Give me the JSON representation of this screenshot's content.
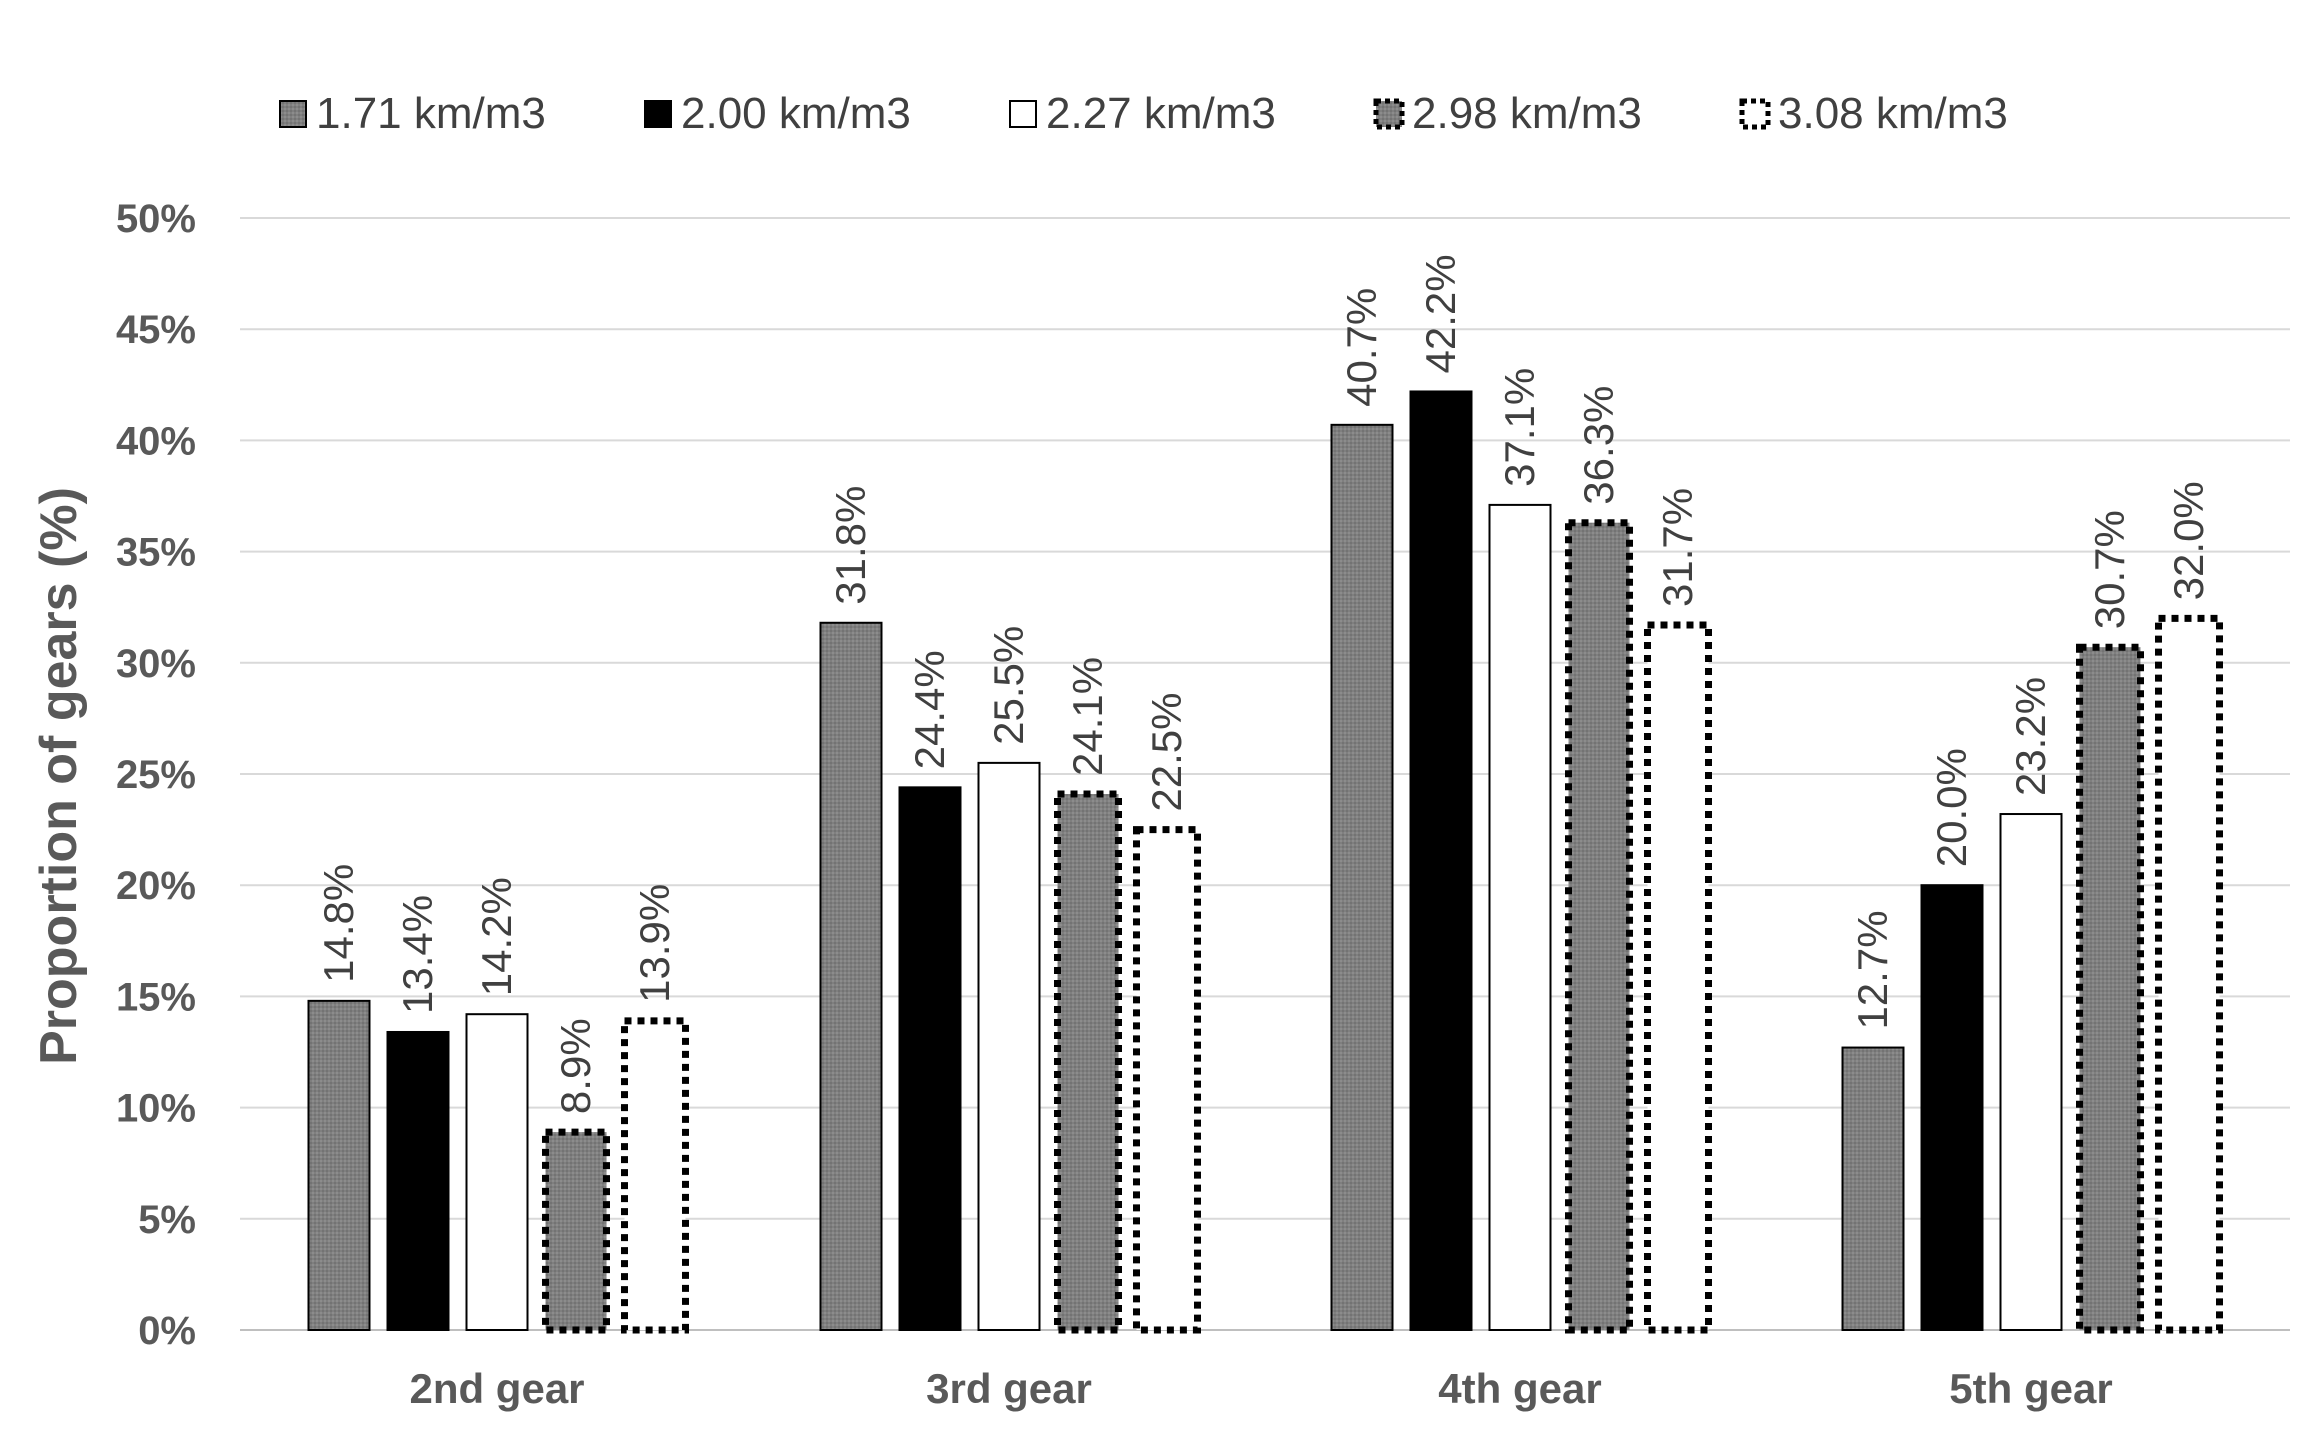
{
  "chart_data": {
    "type": "bar",
    "title": "",
    "xlabel": "",
    "ylabel": "Proportion of gears (%)",
    "ylim": [
      0,
      50
    ],
    "ytick_step": 5,
    "ytick_labels": [
      "0%",
      "5%",
      "10%",
      "15%",
      "20%",
      "25%",
      "30%",
      "35%",
      "40%",
      "45%",
      "50%"
    ],
    "grid": "horizontal",
    "legend_position": "top",
    "categories": [
      "2nd gear",
      "3rd gear",
      "4th gear",
      "5th gear"
    ],
    "series": [
      {
        "name": "1.71 km/m3",
        "style": "gray-solid",
        "fill": "#808080",
        "values": [
          14.8,
          31.8,
          40.7,
          12.7
        ],
        "labels": [
          "14.8%",
          "31.8%",
          "40.7%",
          "12.7%"
        ]
      },
      {
        "name": "2.00 km/m3",
        "style": "black-solid",
        "fill": "#000000",
        "values": [
          13.4,
          24.4,
          42.2,
          20.0
        ],
        "labels": [
          "13.4%",
          "24.4%",
          "42.2%",
          "20.0%"
        ]
      },
      {
        "name": "2.27 km/m3",
        "style": "white-solid",
        "fill": "#ffffff",
        "values": [
          14.2,
          25.5,
          37.1,
          23.2
        ],
        "labels": [
          "14.2%",
          "25.5%",
          "37.1%",
          "23.2%"
        ]
      },
      {
        "name": "2.98 km/m3",
        "style": "gray-dotted",
        "fill": "#808080",
        "values": [
          8.9,
          24.1,
          36.3,
          30.7
        ],
        "labels": [
          "8.9%",
          "24.1%",
          "36.3%",
          "30.7%"
        ]
      },
      {
        "name": "3.08 km/m3",
        "style": "white-dotted",
        "fill": "#ffffff",
        "values": [
          13.9,
          22.5,
          31.7,
          32.0
        ],
        "labels": [
          "13.9%",
          "22.5%",
          "31.7%",
          "32.0%"
        ]
      }
    ]
  }
}
